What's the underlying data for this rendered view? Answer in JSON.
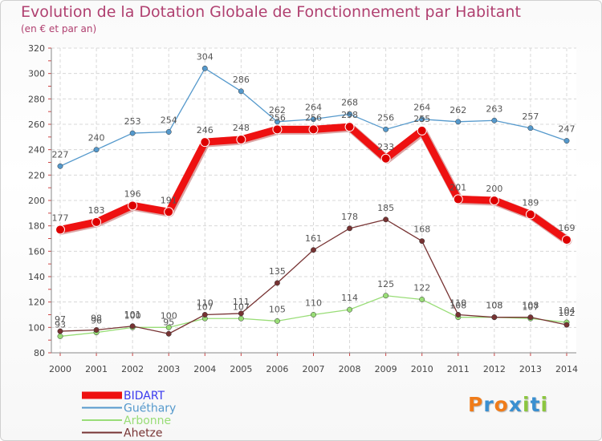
{
  "title": "Evolution de la Dotation Globale de Fonctionnement par Habitant",
  "subtitle": "(en € et par an)",
  "logo": {
    "text": "Proxiti",
    "letters": [
      {
        "ch": "P",
        "color": "#f07c1a"
      },
      {
        "ch": "r",
        "color": "#3a8fd0"
      },
      {
        "ch": "o",
        "color": "#f07c1a"
      },
      {
        "ch": "x",
        "color": "#3a8fd0"
      },
      {
        "ch": "i",
        "color": "#8cc63f"
      },
      {
        "ch": "t",
        "color": "#3a8fd0"
      },
      {
        "ch": "i",
        "color": "#8cc63f"
      }
    ]
  },
  "chart_data": {
    "type": "line",
    "title": "Evolution de la Dotation Globale de Fonctionnement par Habitant",
    "subtitle": "(en € et par an)",
    "x": [
      2000,
      2001,
      2002,
      2003,
      2004,
      2005,
      2006,
      2007,
      2008,
      2009,
      2010,
      2011,
      2012,
      2013,
      2014
    ],
    "x_tick_labels": [
      "2000",
      "2001",
      "2002",
      "2003",
      "2004",
      "2005",
      "2006",
      "2007",
      "2008",
      "2009",
      "2010",
      "2011",
      "2012",
      "2013",
      "2014"
    ],
    "ylim": [
      80,
      320
    ],
    "y_ticks": [
      80,
      100,
      120,
      140,
      160,
      180,
      200,
      220,
      240,
      260,
      280,
      300,
      320
    ],
    "y_tick_labels": [
      "80",
      "100",
      "120",
      "140",
      "160",
      "180",
      "200",
      "220",
      "240",
      "260",
      "280",
      "300",
      "320"
    ],
    "grid": true,
    "legend_position": "bottom-left",
    "series": [
      {
        "name": "BIDART",
        "color": "#ee1111",
        "legend_color": "#3a3aee",
        "thick": true,
        "values": [
          177,
          183,
          196,
          191,
          246,
          248,
          256,
          256,
          258,
          233,
          255,
          201,
          200,
          189,
          169
        ],
        "labels": [
          "177",
          "183",
          "196",
          "191",
          "246",
          "248",
          "256",
          "256",
          "258",
          "233",
          "255",
          "201",
          "200",
          "189",
          "169"
        ]
      },
      {
        "name": "Guéthary",
        "color": "#5599cc",
        "legend_color": "#5599cc",
        "thick": false,
        "values": [
          227,
          240,
          253,
          254,
          304,
          286,
          262,
          264,
          268,
          256,
          264,
          262,
          263,
          257,
          247
        ],
        "labels": [
          "227",
          "240",
          "253",
          "254",
          "304",
          "286",
          "262",
          "264",
          "268",
          "256",
          "264",
          "262",
          "263",
          "257",
          "247"
        ]
      },
      {
        "name": "Arbonne",
        "color": "#99dd77",
        "legend_color": "#99dd77",
        "thick": false,
        "values": [
          93,
          96,
          100,
          100,
          107,
          107,
          105,
          110,
          114,
          125,
          122,
          108,
          108,
          107,
          104
        ],
        "labels": [
          "93",
          "96",
          "100",
          "100",
          "107",
          "107",
          "105",
          "110",
          "114",
          "125",
          "122",
          "108",
          "108",
          "107",
          "104"
        ]
      },
      {
        "name": "Ahetze",
        "color": "#773333",
        "legend_color": "#773333",
        "thick": false,
        "values": [
          97,
          98,
          101,
          95,
          110,
          111,
          135,
          161,
          178,
          185,
          168,
          110,
          108,
          108,
          102
        ],
        "labels": [
          "97",
          "98",
          "101",
          "95",
          "110",
          "111",
          "135",
          "161",
          "178",
          "185",
          "168",
          "110",
          "108",
          "108",
          "102"
        ]
      }
    ]
  }
}
